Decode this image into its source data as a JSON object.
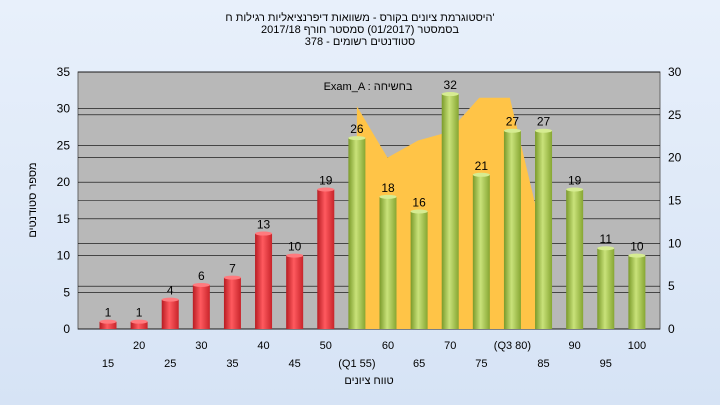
{
  "chart_data": {
    "type": "bar",
    "title_lines": [
      "היסטוגרמת ציונים בקורס - משוואות דיפרנציאליות רגילות ח'",
      "בסמסטר (01/2017) סמסטר חורף 2017/18",
      "378 - סטודנטים רשומים"
    ],
    "legend": "Exam_A : בחשיחה",
    "xlabel": "טווח ציונים",
    "ylabel": "מספר סטודנטים",
    "ylim": [
      0,
      35
    ],
    "y2lim": [
      0,
      30
    ],
    "yticks": [
      0,
      5,
      10,
      15,
      20,
      25,
      30,
      35
    ],
    "y2ticks": [
      0,
      5,
      10,
      15,
      20,
      25,
      30
    ],
    "categories": [
      "15",
      "20",
      "25",
      "30",
      "35",
      "40",
      "45",
      "50",
      "(Q1 55)",
      "60",
      "65",
      "70",
      "75",
      "(Q3 80)",
      "85",
      "90",
      "95",
      "100"
    ],
    "values": [
      1,
      1,
      4,
      6,
      7,
      13,
      10,
      19,
      26,
      18,
      16,
      32,
      21,
      27,
      27,
      19,
      11,
      10
    ],
    "bar_colors": [
      "red",
      "red",
      "red",
      "red",
      "red",
      "red",
      "red",
      "red",
      "green",
      "green",
      "green",
      "green",
      "green",
      "green",
      "green",
      "green",
      "green",
      "green"
    ],
    "area_series": [
      26,
      20,
      22,
      23,
      27,
      27,
      12
    ],
    "area_span": [
      "(Q1 55)",
      "(Q3 80)"
    ],
    "colors": {
      "red": "#e8343b",
      "green": "#a6c846",
      "area": "#ffc447",
      "plot_bg": "#b8b8b8"
    }
  }
}
